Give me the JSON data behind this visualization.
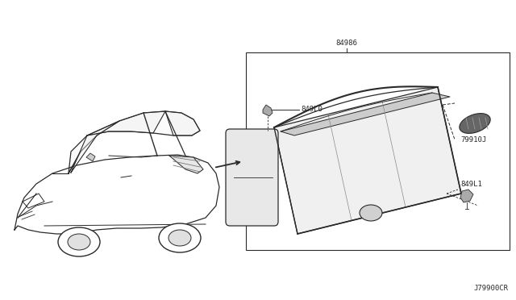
{
  "bg_color": "#ffffff",
  "line_color": "#2a2a2a",
  "diagram_code": "J79900CR",
  "part_numbers": {
    "main": "84986",
    "top_bracket": "849L0",
    "bottom_bracket": "849L1",
    "clip": "79910J"
  },
  "font_size_label": 6.5,
  "font_size_code": 6.5
}
